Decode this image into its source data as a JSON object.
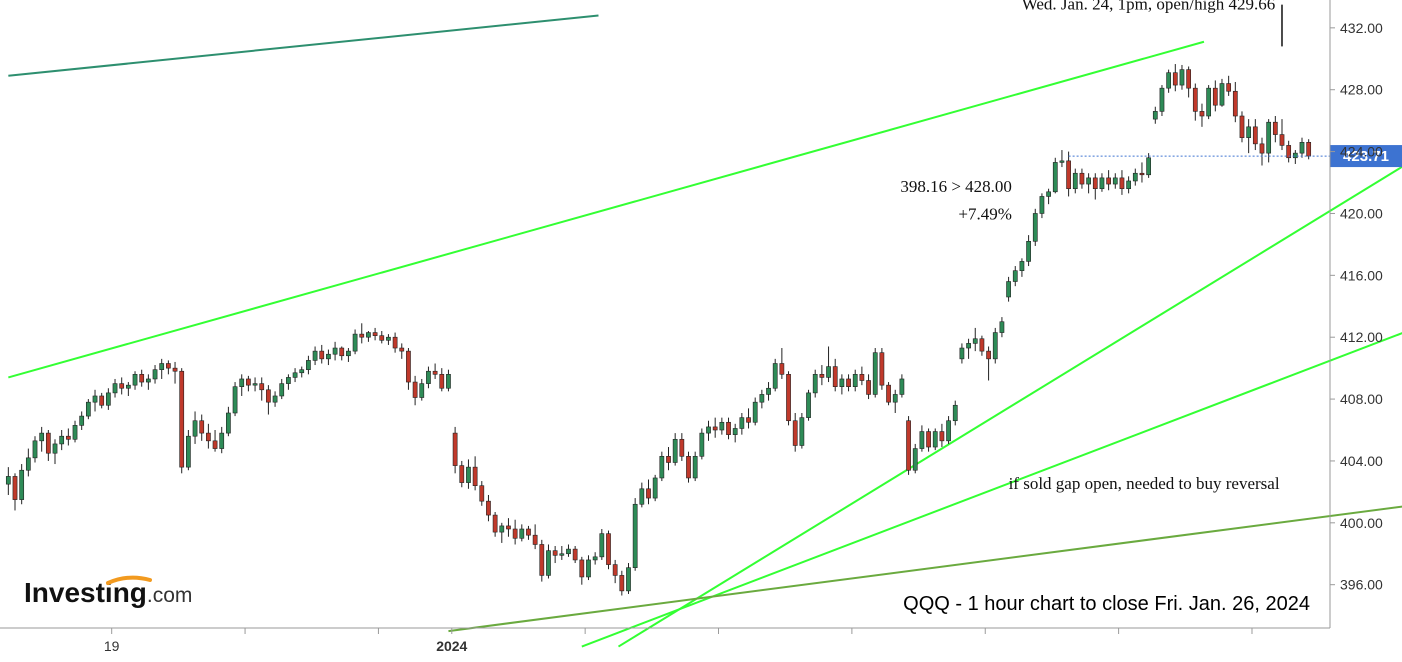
{
  "chart_data": {
    "type": "candlestick",
    "title": "QQQ - 1 hour chart to close Fri. Jan. 26, 2024",
    "y_ticks": [
      "396.00",
      "400.00",
      "404.00",
      "408.00",
      "412.00",
      "416.00",
      "420.00",
      "424.00",
      "428.00",
      "432.00"
    ],
    "ylim": [
      393.2,
      433.8
    ],
    "x_labels": [
      {
        "label": "19",
        "bar": 16
      },
      {
        "label": "2024",
        "bar": 67
      }
    ],
    "x_separators": [
      16,
      36,
      56,
      67,
      87,
      107,
      127,
      147,
      167,
      187
    ],
    "last_price": 423.71,
    "last_price_label": "423.71",
    "last_price_color": "#3d73d1",
    "up_color": "#2e8b57",
    "down_color": "#c0392b",
    "candles": [
      [
        402.5,
        403.6,
        401.8,
        403.0
      ],
      [
        403.0,
        403.2,
        400.8,
        401.5
      ],
      [
        401.5,
        403.8,
        401.2,
        403.4
      ],
      [
        403.4,
        404.8,
        403.0,
        404.2
      ],
      [
        404.2,
        405.6,
        403.9,
        405.3
      ],
      [
        405.3,
        406.2,
        404.6,
        405.8
      ],
      [
        405.8,
        406.0,
        404.0,
        404.5
      ],
      [
        404.5,
        405.4,
        403.8,
        405.1
      ],
      [
        405.1,
        406.0,
        404.7,
        405.6
      ],
      [
        405.6,
        406.1,
        405.0,
        405.4
      ],
      [
        405.4,
        406.6,
        405.2,
        406.3
      ],
      [
        406.3,
        407.2,
        406.0,
        406.9
      ],
      [
        406.9,
        408.0,
        406.7,
        407.8
      ],
      [
        407.8,
        408.6,
        407.2,
        408.2
      ],
      [
        408.2,
        408.4,
        407.4,
        407.6
      ],
      [
        407.6,
        408.7,
        407.3,
        408.4
      ],
      [
        408.4,
        409.3,
        408.1,
        409.0
      ],
      [
        409.0,
        409.4,
        408.3,
        408.7
      ],
      [
        408.7,
        409.1,
        408.2,
        408.9
      ],
      [
        408.9,
        409.8,
        408.6,
        409.6
      ],
      [
        409.6,
        409.9,
        408.8,
        409.1
      ],
      [
        409.1,
        409.6,
        408.6,
        409.3
      ],
      [
        409.3,
        410.2,
        409.0,
        409.9
      ],
      [
        409.9,
        410.6,
        409.3,
        410.3
      ],
      [
        410.3,
        410.5,
        409.6,
        410.0
      ],
      [
        410.0,
        410.4,
        409.0,
        409.8
      ],
      [
        409.8,
        410.0,
        403.2,
        403.6
      ],
      [
        403.6,
        406.0,
        403.4,
        405.6
      ],
      [
        405.6,
        407.2,
        405.1,
        406.6
      ],
      [
        406.6,
        407.0,
        405.3,
        405.8
      ],
      [
        405.8,
        406.4,
        404.8,
        405.3
      ],
      [
        405.3,
        406.0,
        404.6,
        404.8
      ],
      [
        404.8,
        406.2,
        404.5,
        405.8
      ],
      [
        405.8,
        407.5,
        405.6,
        407.1
      ],
      [
        407.1,
        409.1,
        406.9,
        408.8
      ],
      [
        408.8,
        409.6,
        408.2,
        409.3
      ],
      [
        409.3,
        409.5,
        408.5,
        408.9
      ],
      [
        408.9,
        409.4,
        408.5,
        409.0
      ],
      [
        409.0,
        409.4,
        407.9,
        408.6
      ],
      [
        408.6,
        408.9,
        407.0,
        407.8
      ],
      [
        407.8,
        408.5,
        407.5,
        408.2
      ],
      [
        408.2,
        409.3,
        408.0,
        409.0
      ],
      [
        409.0,
        409.6,
        408.6,
        409.4
      ],
      [
        409.4,
        410.0,
        409.1,
        409.7
      ],
      [
        409.7,
        410.1,
        409.4,
        409.9
      ],
      [
        409.9,
        410.8,
        409.6,
        410.5
      ],
      [
        410.5,
        411.4,
        410.2,
        411.1
      ],
      [
        411.1,
        411.5,
        410.3,
        410.6
      ],
      [
        410.6,
        411.2,
        410.2,
        410.9
      ],
      [
        410.9,
        411.7,
        410.5,
        411.3
      ],
      [
        411.3,
        411.4,
        410.5,
        410.8
      ],
      [
        410.8,
        411.3,
        410.4,
        411.1
      ],
      [
        411.1,
        412.5,
        410.9,
        412.2
      ],
      [
        412.2,
        412.9,
        411.6,
        412.0
      ],
      [
        412.0,
        412.4,
        411.7,
        412.3
      ],
      [
        412.3,
        412.6,
        411.8,
        412.1
      ],
      [
        412.1,
        412.4,
        411.6,
        411.8
      ],
      [
        411.8,
        412.2,
        411.5,
        412.0
      ],
      [
        412.0,
        412.3,
        411.0,
        411.3
      ],
      [
        411.3,
        411.6,
        410.6,
        411.1
      ],
      [
        411.1,
        411.3,
        408.6,
        409.1
      ],
      [
        409.1,
        409.5,
        407.6,
        408.1
      ],
      [
        408.1,
        409.3,
        407.9,
        409.0
      ],
      [
        409.0,
        410.1,
        408.7,
        409.8
      ],
      [
        409.8,
        410.3,
        409.3,
        409.6
      ],
      [
        409.6,
        410.0,
        408.5,
        408.7
      ],
      [
        408.7,
        409.9,
        408.5,
        409.6
      ],
      [
        405.8,
        406.2,
        403.2,
        403.7
      ],
      [
        403.7,
        404.0,
        402.3,
        402.6
      ],
      [
        402.6,
        404.1,
        402.2,
        403.6
      ],
      [
        403.6,
        404.3,
        402.1,
        402.4
      ],
      [
        402.4,
        402.7,
        401.1,
        401.4
      ],
      [
        401.4,
        401.8,
        400.1,
        400.5
      ],
      [
        400.5,
        400.7,
        399.1,
        399.4
      ],
      [
        399.4,
        400.0,
        398.7,
        399.8
      ],
      [
        399.8,
        400.3,
        399.1,
        399.6
      ],
      [
        399.6,
        400.2,
        398.6,
        399.0
      ],
      [
        399.0,
        399.9,
        398.8,
        399.6
      ],
      [
        399.6,
        399.8,
        398.9,
        399.2
      ],
      [
        399.2,
        399.9,
        398.3,
        398.6
      ],
      [
        398.6,
        398.9,
        396.2,
        396.6
      ],
      [
        396.6,
        398.6,
        396.4,
        398.2
      ],
      [
        398.2,
        398.5,
        397.4,
        397.9
      ],
      [
        397.9,
        398.5,
        397.6,
        398.0
      ],
      [
        398.0,
        398.6,
        397.8,
        398.3
      ],
      [
        398.3,
        398.5,
        397.4,
        397.6
      ],
      [
        397.6,
        397.8,
        396.0,
        396.5
      ],
      [
        396.5,
        397.9,
        396.3,
        397.6
      ],
      [
        397.6,
        398.1,
        397.3,
        397.8
      ],
      [
        397.8,
        399.6,
        397.6,
        399.3
      ],
      [
        399.3,
        399.5,
        397.0,
        397.3
      ],
      [
        397.3,
        397.6,
        396.1,
        396.6
      ],
      [
        396.6,
        396.9,
        395.3,
        395.6
      ],
      [
        395.6,
        397.4,
        395.4,
        397.1
      ],
      [
        397.1,
        401.6,
        396.9,
        401.2
      ],
      [
        401.2,
        402.6,
        401.0,
        402.2
      ],
      [
        402.2,
        402.8,
        401.2,
        401.6
      ],
      [
        401.6,
        403.1,
        401.4,
        402.9
      ],
      [
        402.9,
        404.6,
        402.7,
        404.3
      ],
      [
        404.3,
        404.9,
        403.4,
        403.9
      ],
      [
        403.9,
        405.8,
        403.7,
        405.4
      ],
      [
        405.4,
        405.8,
        404.0,
        404.3
      ],
      [
        404.3,
        404.6,
        402.6,
        402.9
      ],
      [
        402.9,
        404.6,
        402.7,
        404.3
      ],
      [
        404.3,
        406.1,
        404.1,
        405.8
      ],
      [
        405.8,
        406.6,
        405.3,
        406.2
      ],
      [
        406.2,
        406.8,
        405.5,
        406.0
      ],
      [
        406.0,
        406.8,
        405.7,
        406.5
      ],
      [
        406.5,
        406.8,
        405.4,
        405.7
      ],
      [
        405.7,
        406.4,
        405.2,
        406.1
      ],
      [
        406.1,
        407.1,
        405.7,
        406.8
      ],
      [
        406.8,
        407.4,
        406.1,
        406.5
      ],
      [
        406.5,
        408.1,
        406.3,
        407.8
      ],
      [
        407.8,
        408.6,
        407.4,
        408.3
      ],
      [
        408.3,
        409.1,
        407.9,
        408.7
      ],
      [
        408.7,
        410.6,
        408.5,
        410.3
      ],
      [
        410.3,
        411.3,
        409.3,
        409.6
      ],
      [
        409.6,
        409.8,
        406.3,
        406.6
      ],
      [
        406.6,
        407.1,
        404.6,
        405.0
      ],
      [
        405.0,
        407.1,
        404.8,
        406.8
      ],
      [
        406.8,
        408.6,
        406.6,
        408.4
      ],
      [
        408.4,
        409.9,
        408.1,
        409.6
      ],
      [
        409.6,
        410.2,
        408.9,
        409.4
      ],
      [
        409.4,
        411.4,
        409.1,
        410.1
      ],
      [
        410.1,
        410.6,
        408.5,
        408.8
      ],
      [
        408.8,
        409.6,
        408.3,
        409.3
      ],
      [
        409.3,
        409.6,
        408.5,
        408.8
      ],
      [
        408.8,
        409.9,
        408.5,
        409.6
      ],
      [
        409.6,
        410.1,
        408.9,
        409.2
      ],
      [
        409.2,
        409.6,
        408.0,
        408.3
      ],
      [
        408.3,
        411.3,
        408.1,
        411.0
      ],
      [
        411.0,
        411.3,
        408.6,
        408.9
      ],
      [
        408.9,
        409.1,
        407.6,
        407.8
      ],
      [
        407.8,
        408.6,
        407.1,
        408.3
      ],
      [
        408.3,
        409.6,
        408.1,
        409.3
      ],
      [
        406.6,
        406.9,
        403.1,
        403.4
      ],
      [
        403.4,
        405.1,
        403.2,
        404.8
      ],
      [
        404.8,
        406.3,
        404.6,
        405.9
      ],
      [
        405.9,
        406.1,
        404.6,
        404.9
      ],
      [
        404.9,
        406.1,
        404.7,
        405.9
      ],
      [
        405.9,
        406.4,
        404.9,
        405.3
      ],
      [
        405.3,
        406.9,
        405.1,
        406.6
      ],
      [
        406.6,
        407.9,
        406.3,
        407.6
      ],
      [
        410.6,
        411.6,
        410.3,
        411.3
      ],
      [
        411.3,
        411.9,
        410.6,
        411.6
      ],
      [
        411.6,
        412.6,
        411.1,
        411.9
      ],
      [
        411.9,
        412.1,
        410.8,
        411.1
      ],
      [
        411.1,
        411.4,
        409.2,
        410.6
      ],
      [
        410.6,
        412.6,
        410.3,
        412.3
      ],
      [
        412.3,
        413.3,
        412.0,
        413.0
      ],
      [
        414.6,
        415.9,
        414.3,
        415.6
      ],
      [
        415.6,
        416.6,
        415.3,
        416.3
      ],
      [
        416.3,
        417.1,
        415.9,
        416.9
      ],
      [
        416.9,
        418.6,
        416.6,
        418.2
      ],
      [
        418.2,
        420.3,
        417.9,
        420.0
      ],
      [
        420.0,
        421.3,
        419.7,
        421.1
      ],
      [
        421.1,
        421.6,
        420.6,
        421.4
      ],
      [
        421.4,
        423.6,
        421.3,
        423.3
      ],
      [
        423.3,
        424.1,
        423.0,
        423.4
      ],
      [
        423.4,
        424.0,
        421.1,
        421.6
      ],
      [
        421.6,
        422.9,
        421.3,
        422.6
      ],
      [
        422.6,
        422.9,
        421.6,
        421.9
      ],
      [
        421.9,
        422.6,
        421.3,
        422.3
      ],
      [
        422.3,
        422.6,
        420.9,
        421.6
      ],
      [
        421.6,
        422.6,
        421.4,
        422.3
      ],
      [
        422.3,
        422.8,
        421.5,
        421.9
      ],
      [
        421.9,
        422.6,
        421.6,
        422.3
      ],
      [
        422.3,
        422.8,
        421.2,
        421.6
      ],
      [
        421.6,
        422.4,
        421.3,
        422.1
      ],
      [
        422.1,
        422.9,
        421.8,
        422.6
      ],
      [
        422.6,
        423.3,
        422.0,
        422.5
      ],
      [
        422.5,
        423.9,
        422.3,
        423.6
      ],
      [
        426.1,
        426.9,
        425.8,
        426.6
      ],
      [
        426.6,
        428.3,
        426.3,
        428.1
      ],
      [
        428.1,
        429.3,
        427.8,
        429.1
      ],
      [
        429.1,
        429.66,
        427.9,
        428.3
      ],
      [
        428.3,
        429.6,
        428.0,
        429.3
      ],
      [
        429.3,
        429.5,
        427.5,
        428.1
      ],
      [
        428.1,
        428.4,
        426.0,
        426.6
      ],
      [
        426.6,
        427.1,
        425.6,
        426.3
      ],
      [
        426.3,
        428.3,
        426.1,
        428.1
      ],
      [
        428.1,
        428.6,
        426.6,
        427.0
      ],
      [
        427.0,
        428.7,
        426.9,
        428.4
      ],
      [
        428.4,
        428.9,
        427.6,
        427.9
      ],
      [
        427.9,
        428.5,
        425.9,
        426.3
      ],
      [
        426.3,
        426.6,
        424.6,
        424.9
      ],
      [
        424.9,
        426.1,
        423.9,
        425.6
      ],
      [
        425.6,
        426.1,
        424.1,
        424.5
      ],
      [
        424.5,
        424.9,
        423.1,
        423.9
      ],
      [
        423.9,
        426.1,
        423.3,
        425.9
      ],
      [
        425.9,
        426.3,
        424.6,
        425.1
      ],
      [
        425.1,
        426.1,
        424.1,
        424.4
      ],
      [
        424.4,
        424.7,
        423.3,
        423.6
      ],
      [
        423.6,
        424.1,
        423.2,
        423.9
      ],
      [
        423.9,
        424.9,
        423.6,
        424.6
      ],
      [
        424.6,
        424.8,
        423.5,
        423.71
      ]
    ],
    "trendlines": [
      {
        "x1": 0,
        "y1": 428.9,
        "x2": 88.5,
        "y2": 432.8,
        "color": "#2d8f6f"
      },
      {
        "x1": 0,
        "y1": 409.4,
        "x2": 179.3,
        "y2": 431.1,
        "color": "#33ff33"
      },
      {
        "x1": 91.5,
        "y1": 392.0,
        "x2": 213.5,
        "y2": 424.2,
        "color": "#33ff33"
      },
      {
        "x1": 86.0,
        "y1": 392.0,
        "x2": 213.5,
        "y2": 413.0,
        "color": "#33ff33"
      },
      {
        "x1": 66.0,
        "y1": 393.0,
        "x2": 213.5,
        "y2": 401.3,
        "color": "#6aaa3f"
      }
    ],
    "annotations": [
      {
        "text": "Wed. Jan. 24, 1pm, open/high 429.66",
        "anchor": "end",
        "x_bar": 190.0,
        "y": 433.2
      },
      {
        "text": "398.16 > 428.00",
        "anchor": "end",
        "x_bar": 150.5,
        "y": 421.4
      },
      {
        "text": "+7.49%",
        "anchor": "end",
        "x_bar": 150.5,
        "y": 419.6
      },
      {
        "text": "if sold gap open, needed to buy reversal",
        "anchor": "start",
        "x_bar": 150.0,
        "y": 402.2
      }
    ],
    "high_marker": {
      "bar": 191.0,
      "from": 433.5,
      "to": 430.8
    },
    "logo": {
      "main": "Investing",
      "sub": ".com"
    }
  }
}
